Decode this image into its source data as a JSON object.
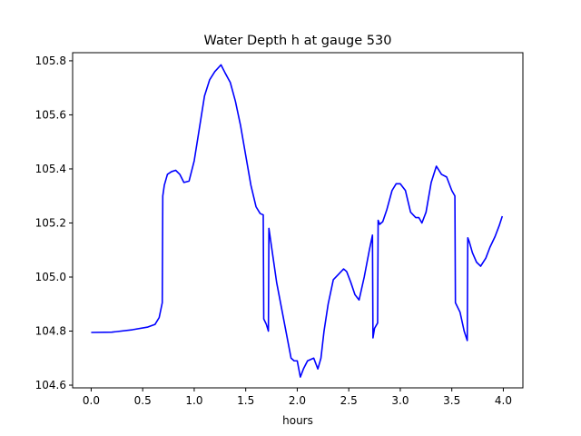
{
  "chart_data": {
    "type": "line",
    "title": "Water Depth h at gauge 530",
    "xlabel": "hours",
    "ylabel": "",
    "xlim": [
      -0.18,
      4.19
    ],
    "ylim": [
      104.59,
      105.83
    ],
    "xticks": [
      0.0,
      0.5,
      1.0,
      1.5,
      2.0,
      2.5,
      3.0,
      3.5,
      4.0
    ],
    "xtick_labels": [
      "0.0",
      "0.5",
      "1.0",
      "1.5",
      "2.0",
      "2.5",
      "3.0",
      "3.5",
      "4.0"
    ],
    "yticks": [
      104.6,
      104.8,
      105.0,
      105.2,
      105.4,
      105.6,
      105.8
    ],
    "ytick_labels": [
      "104.6",
      "104.8",
      "105.0",
      "105.2",
      "105.4",
      "105.6",
      "105.8"
    ],
    "grid": false,
    "color": "#0000ff",
    "series": [
      {
        "x": [
          0.0,
          0.2,
          0.4,
          0.55,
          0.62,
          0.66,
          0.69,
          0.695,
          0.71,
          0.74,
          0.78,
          0.82,
          0.86,
          0.9,
          0.95,
          1.0,
          1.05,
          1.1,
          1.15,
          1.2,
          1.26,
          1.3,
          1.35,
          1.4,
          1.45,
          1.5,
          1.55,
          1.6,
          1.64,
          1.67,
          1.675,
          1.7,
          1.72,
          1.725,
          1.74,
          1.77,
          1.8,
          1.85,
          1.9,
          1.94,
          1.97,
          2.0,
          2.03,
          2.06,
          2.1,
          2.13,
          2.16,
          2.2,
          2.23,
          2.26,
          2.3,
          2.35,
          2.4,
          2.45,
          2.48,
          2.52,
          2.56,
          2.6,
          2.65,
          2.7,
          2.73,
          2.735,
          2.75,
          2.78,
          2.785,
          2.8,
          2.83,
          2.87,
          2.92,
          2.96,
          3.0,
          3.05,
          3.1,
          3.15,
          3.18,
          3.21,
          3.25,
          3.3,
          3.35,
          3.4,
          3.45,
          3.5,
          3.53,
          3.535,
          3.58,
          3.62,
          3.65,
          3.655,
          3.67,
          3.7,
          3.74,
          3.78,
          3.83,
          3.87,
          3.92,
          3.96,
          3.99
        ],
        "y": [
          104.795,
          104.796,
          104.805,
          104.815,
          104.825,
          104.85,
          104.905,
          105.3,
          105.34,
          105.38,
          105.39,
          105.395,
          105.38,
          105.35,
          105.355,
          105.43,
          105.55,
          105.67,
          105.73,
          105.76,
          105.785,
          105.755,
          105.72,
          105.65,
          105.56,
          105.45,
          105.34,
          105.26,
          105.235,
          105.23,
          104.845,
          104.825,
          104.8,
          105.18,
          105.14,
          105.06,
          104.98,
          104.88,
          104.78,
          104.7,
          104.69,
          104.69,
          104.63,
          104.66,
          104.69,
          104.695,
          104.7,
          104.66,
          104.7,
          104.8,
          104.9,
          104.99,
          105.01,
          105.03,
          105.02,
          104.98,
          104.935,
          104.915,
          105.0,
          105.1,
          105.155,
          104.775,
          104.81,
          104.83,
          105.21,
          105.195,
          105.205,
          105.25,
          105.32,
          105.345,
          105.345,
          105.32,
          105.24,
          105.22,
          105.22,
          105.2,
          105.24,
          105.35,
          105.41,
          105.38,
          105.37,
          105.32,
          105.3,
          104.905,
          104.87,
          104.8,
          104.765,
          105.145,
          105.13,
          105.09,
          105.055,
          105.04,
          105.07,
          105.11,
          105.15,
          105.19,
          105.225
        ]
      }
    ]
  }
}
